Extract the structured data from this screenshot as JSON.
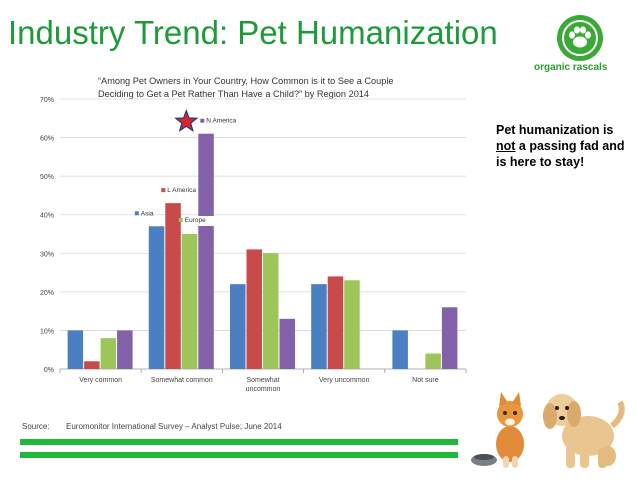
{
  "slide": {
    "title": "Industry Trend: Pet Humanization",
    "logo_text": "organic rascals",
    "callout": {
      "pre": "Pet humanization is ",
      "emph": "not",
      "post": " a passing fad and is here to stay!"
    },
    "source_label": "Source:",
    "source_text": "Euromonitor International Survey – Analyst Pulse; June 2014",
    "icons": [
      "paw-logo-icon",
      "star-icon",
      "kitten-puppy-image"
    ],
    "colors": {
      "title": "#1f9a3a",
      "rule": "#1fb83c",
      "star": "#d8262b"
    }
  },
  "chart_data": {
    "type": "bar",
    "title": "“Among Pet Owners in Your Country, How Common is it to See a Couple Deciding to Get a Pet Rather Than Have a Child?” by Region 2014",
    "title_lines": [
      "“Among Pet Owners in Your Country, How Common is it to See a Couple",
      "Deciding to Get a Pet Rather Than Have a Child?” by Region 2014"
    ],
    "categories": [
      "Very common",
      "Somewhat common",
      "Somewhat uncommon",
      "Very uncommon",
      "Not sure"
    ],
    "category_lines": [
      [
        "Very common"
      ],
      [
        "Somewhat common"
      ],
      [
        "Somewhat",
        "uncommon"
      ],
      [
        "Very uncommon"
      ],
      [
        "Not sure"
      ]
    ],
    "series": [
      {
        "name": "Asia",
        "color": "#4a7fc1",
        "values": [
          10,
          37,
          22,
          22,
          10
        ]
      },
      {
        "name": "L America",
        "color": "#c94a4a",
        "values": [
          2,
          43,
          31,
          24,
          0
        ]
      },
      {
        "name": "Europe",
        "color": "#9cc55a",
        "values": [
          8,
          35,
          30,
          23,
          4
        ]
      },
      {
        "name": "N America",
        "color": "#8261a8",
        "values": [
          10,
          61,
          13,
          0,
          16
        ]
      }
    ],
    "ylim": [
      0,
      70
    ],
    "yticks": [
      "0%",
      "10%",
      "20%",
      "30%",
      "40%",
      "50%",
      "60%",
      "70%"
    ],
    "ytick_values": [
      0,
      10,
      20,
      30,
      40,
      50,
      60,
      70
    ],
    "grid": true,
    "highlight_series": "N America"
  }
}
